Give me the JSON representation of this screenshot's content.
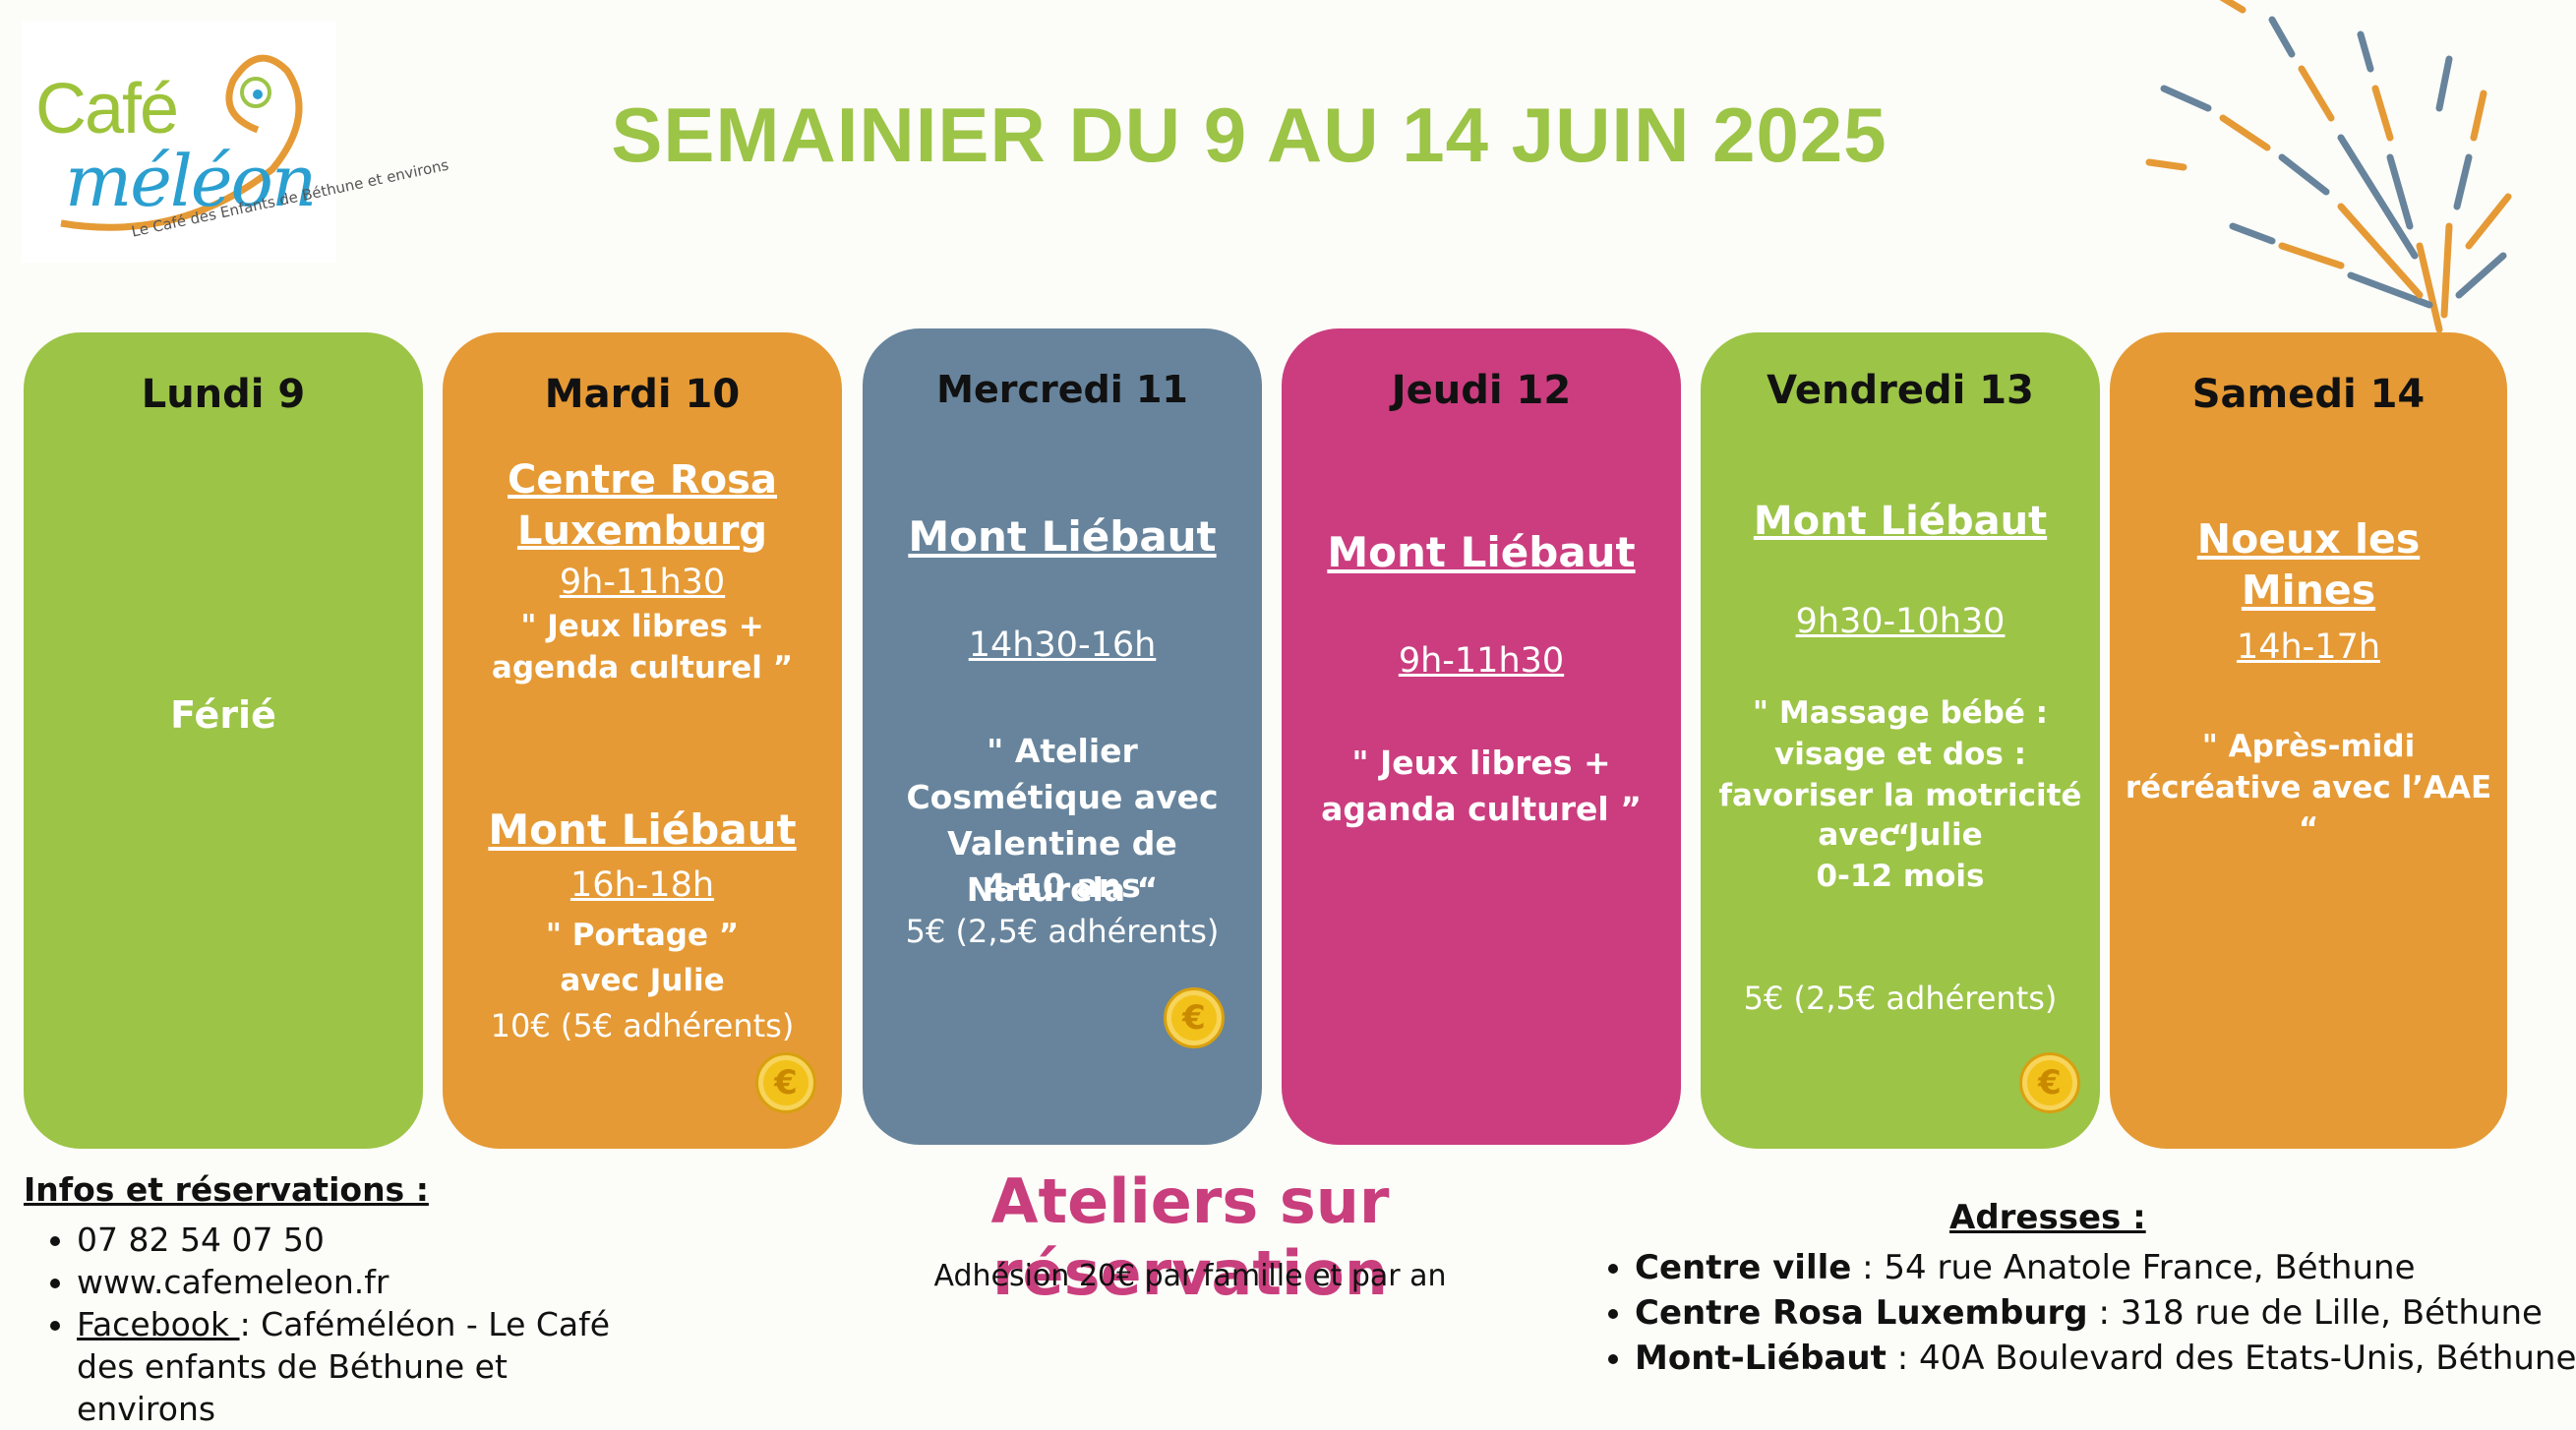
{
  "logo": {
    "line1": "Café",
    "line2": "méléon",
    "tagline": "Le Café des Enfants de Béthune et environs"
  },
  "title": "SEMAINIER DU 9 AU 14 JUIN 2025",
  "colors": {
    "green": "#9cc447",
    "orange": "#e59a35",
    "slate": "#67849c",
    "pink": "#cb3d7f",
    "coin": "#f2c21b"
  },
  "days": {
    "lundi": {
      "name": "Lundi 9",
      "text": "Férié"
    },
    "mardi": {
      "name": "Mardi 10",
      "loc1": "Centre Rosa Luxemburg",
      "time1": "9h-11h30",
      "desc1": "\" Jeux libres + agenda culturel ”",
      "loc2": "Mont Liébaut",
      "time2": "16h-18h",
      "desc2a": "\" Portage ”",
      "desc2b": "avec Julie",
      "price": "10€ (5€ adhérents)"
    },
    "mercredi": {
      "name": "Mercredi 11",
      "loc": "Mont Liébaut",
      "time": "14h30-16h",
      "desc": "\" Atelier Cosmétique avec Valentine de Naturela “",
      "age": "4-10 ans",
      "price": "5€ (2,5€ adhérents)"
    },
    "jeudi": {
      "name": "Jeudi 12",
      "loc": "Mont Liébaut",
      "time": "9h-11h30",
      "desc": "\" Jeux libres + aganda culturel ”"
    },
    "vendredi": {
      "name": "Vendredi 13",
      "loc": "Mont Liébaut",
      "time": "9h30-10h30",
      "desc": "\" Massage bébé : visage et dos : favoriser la motricité “",
      "with": "avec Julie",
      "age": "0-12 mois",
      "price": "5€ (2,5€ adhérents)"
    },
    "samedi": {
      "name": "Samedi 14",
      "loc": "Noeux les Mines",
      "time": "14h-17h",
      "desc": "\" Après-midi récréative avec l’AAE “"
    }
  },
  "coin_symbol": "€",
  "infos": {
    "heading": "Infos et réservations :",
    "phone": "07 82 54 07 50",
    "website": "www.cafemeleon.fr",
    "facebook_label": "Facebook ",
    "facebook_text": ": Caféméléon - Le Café des enfants de Béthune et environs"
  },
  "ateliers": "Ateliers sur réservation",
  "adhesion": "Adhésion 20€ par famille et par an",
  "adresses": {
    "heading": "Adresses :",
    "items": [
      {
        "name": "Centre ville",
        "addr": " : 54 rue Anatole France, Béthune"
      },
      {
        "name": "Centre Rosa Luxemburg",
        "addr": " : 318 rue de Lille, Béthune"
      },
      {
        "name": "Mont-Liébaut",
        "addr": " : 40A Boulevard des Etats-Unis, Béthune"
      }
    ]
  }
}
